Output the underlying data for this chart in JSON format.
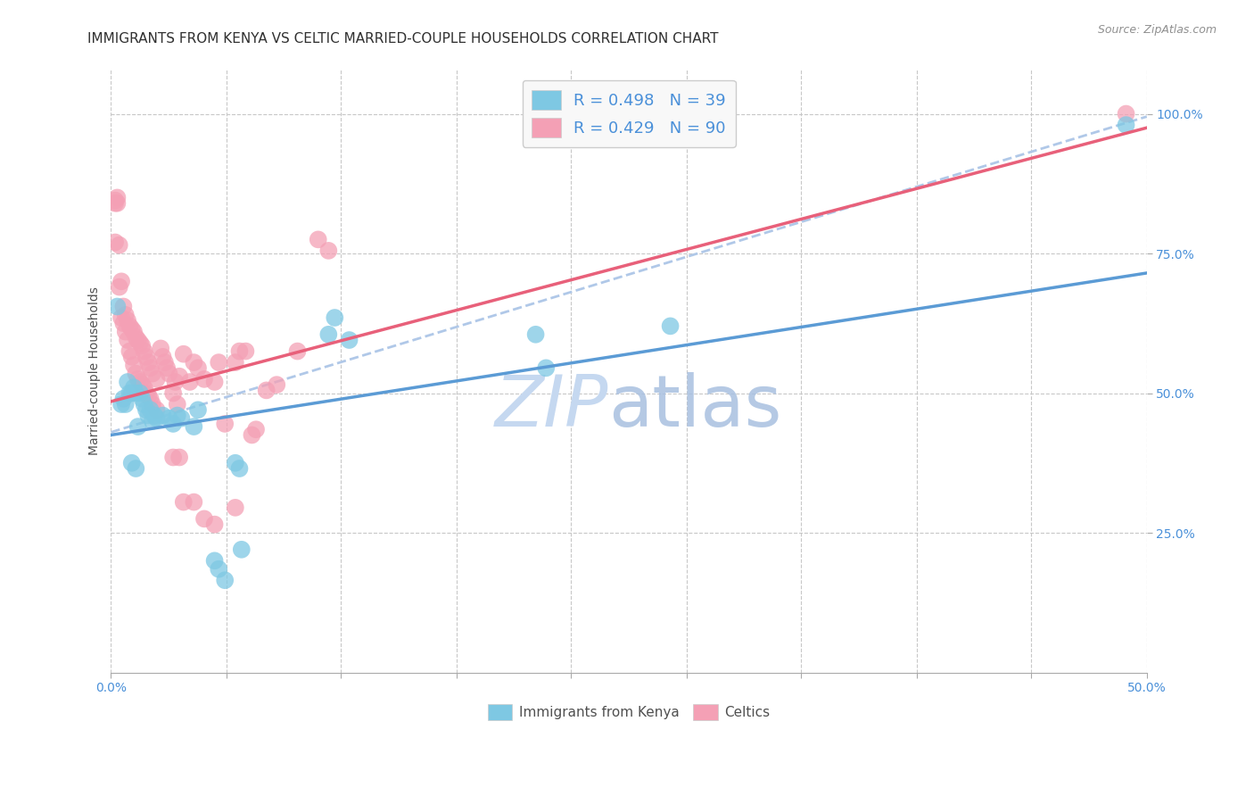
{
  "title": "IMMIGRANTS FROM KENYA VS CELTIC MARRIED-COUPLE HOUSEHOLDS CORRELATION CHART",
  "source": "Source: ZipAtlas.com",
  "ylabel": "Married-couple Households",
  "yticks": [
    "25.0%",
    "50.0%",
    "75.0%",
    "100.0%"
  ],
  "ytick_vals": [
    0.25,
    0.5,
    0.75,
    1.0
  ],
  "blue_color": "#7ec8e3",
  "pink_color": "#f4a0b5",
  "blue_line_color": "#5b9bd5",
  "pink_line_color": "#e8607a",
  "dashed_line_color": "#b0c8e8",
  "watermark_zip_color": "#c5d8f0",
  "watermark_atlas_color": "#a8c0e0",
  "legend_box_color": "#f8f8f8",
  "grid_color": "#c8c8c8",
  "title_color": "#303030",
  "axis_label_color": "#4a90d9",
  "kenya_scatter": [
    [
      0.003,
      0.655
    ],
    [
      0.005,
      0.48
    ],
    [
      0.006,
      0.49
    ],
    [
      0.007,
      0.48
    ],
    [
      0.008,
      0.52
    ],
    [
      0.009,
      0.5
    ],
    [
      0.01,
      0.5
    ],
    [
      0.011,
      0.51
    ],
    [
      0.012,
      0.5
    ],
    [
      0.013,
      0.44
    ],
    [
      0.014,
      0.5
    ],
    [
      0.015,
      0.49
    ],
    [
      0.016,
      0.48
    ],
    [
      0.017,
      0.47
    ],
    [
      0.018,
      0.46
    ],
    [
      0.019,
      0.47
    ],
    [
      0.02,
      0.45
    ],
    [
      0.021,
      0.46
    ],
    [
      0.022,
      0.455
    ],
    [
      0.025,
      0.46
    ],
    [
      0.028,
      0.455
    ],
    [
      0.03,
      0.445
    ],
    [
      0.032,
      0.46
    ],
    [
      0.034,
      0.455
    ],
    [
      0.04,
      0.44
    ],
    [
      0.042,
      0.47
    ],
    [
      0.05,
      0.2
    ],
    [
      0.052,
      0.185
    ],
    [
      0.055,
      0.165
    ],
    [
      0.06,
      0.375
    ],
    [
      0.062,
      0.365
    ],
    [
      0.063,
      0.22
    ],
    [
      0.01,
      0.375
    ],
    [
      0.012,
      0.365
    ],
    [
      0.105,
      0.605
    ],
    [
      0.108,
      0.635
    ],
    [
      0.115,
      0.595
    ],
    [
      0.205,
      0.605
    ],
    [
      0.21,
      0.545
    ],
    [
      0.27,
      0.62
    ],
    [
      0.49,
      0.98
    ]
  ],
  "celtics_scatter": [
    [
      0.002,
      0.845
    ],
    [
      0.002,
      0.84
    ],
    [
      0.002,
      0.77
    ],
    [
      0.003,
      0.85
    ],
    [
      0.003,
      0.84
    ],
    [
      0.004,
      0.765
    ],
    [
      0.004,
      0.69
    ],
    [
      0.005,
      0.7
    ],
    [
      0.005,
      0.635
    ],
    [
      0.006,
      0.655
    ],
    [
      0.006,
      0.625
    ],
    [
      0.007,
      0.64
    ],
    [
      0.007,
      0.61
    ],
    [
      0.008,
      0.63
    ],
    [
      0.008,
      0.595
    ],
    [
      0.009,
      0.62
    ],
    [
      0.009,
      0.575
    ],
    [
      0.01,
      0.615
    ],
    [
      0.01,
      0.565
    ],
    [
      0.011,
      0.61
    ],
    [
      0.011,
      0.55
    ],
    [
      0.012,
      0.6
    ],
    [
      0.012,
      0.535
    ],
    [
      0.013,
      0.595
    ],
    [
      0.013,
      0.525
    ],
    [
      0.014,
      0.59
    ],
    [
      0.014,
      0.52
    ],
    [
      0.015,
      0.585
    ],
    [
      0.015,
      0.515
    ],
    [
      0.016,
      0.575
    ],
    [
      0.016,
      0.51
    ],
    [
      0.017,
      0.565
    ],
    [
      0.017,
      0.5
    ],
    [
      0.018,
      0.555
    ],
    [
      0.018,
      0.495
    ],
    [
      0.019,
      0.545
    ],
    [
      0.019,
      0.49
    ],
    [
      0.02,
      0.535
    ],
    [
      0.02,
      0.48
    ],
    [
      0.022,
      0.525
    ],
    [
      0.022,
      0.47
    ],
    [
      0.024,
      0.58
    ],
    [
      0.025,
      0.565
    ],
    [
      0.026,
      0.555
    ],
    [
      0.027,
      0.545
    ],
    [
      0.028,
      0.535
    ],
    [
      0.03,
      0.5
    ],
    [
      0.031,
      0.52
    ],
    [
      0.032,
      0.48
    ],
    [
      0.033,
      0.53
    ],
    [
      0.035,
      0.57
    ],
    [
      0.038,
      0.52
    ],
    [
      0.04,
      0.555
    ],
    [
      0.042,
      0.545
    ],
    [
      0.045,
      0.525
    ],
    [
      0.05,
      0.52
    ],
    [
      0.052,
      0.555
    ],
    [
      0.055,
      0.445
    ],
    [
      0.06,
      0.555
    ],
    [
      0.062,
      0.575
    ],
    [
      0.065,
      0.575
    ],
    [
      0.068,
      0.425
    ],
    [
      0.07,
      0.435
    ],
    [
      0.075,
      0.505
    ],
    [
      0.08,
      0.515
    ],
    [
      0.09,
      0.575
    ],
    [
      0.1,
      0.775
    ],
    [
      0.105,
      0.755
    ],
    [
      0.03,
      0.385
    ],
    [
      0.033,
      0.385
    ],
    [
      0.035,
      0.305
    ],
    [
      0.04,
      0.305
    ],
    [
      0.045,
      0.275
    ],
    [
      0.05,
      0.265
    ],
    [
      0.06,
      0.295
    ],
    [
      0.49,
      1.0
    ]
  ],
  "celtics_line": {
    "x0": 0.0,
    "y0": 0.485,
    "x1": 0.5,
    "y1": 0.975
  },
  "kenya_line": {
    "x0": 0.0,
    "y0": 0.425,
    "x1": 0.5,
    "y1": 0.715
  },
  "dashed_line": {
    "x0": 0.0,
    "y0": 0.43,
    "x1": 0.5,
    "y1": 0.995
  },
  "xlim": [
    0.0,
    0.5
  ],
  "ylim": [
    0.0,
    1.08
  ],
  "x_tick_positions": [
    0.0,
    0.0556,
    0.111,
    0.167,
    0.222,
    0.278,
    0.333,
    0.389,
    0.444,
    0.5
  ]
}
